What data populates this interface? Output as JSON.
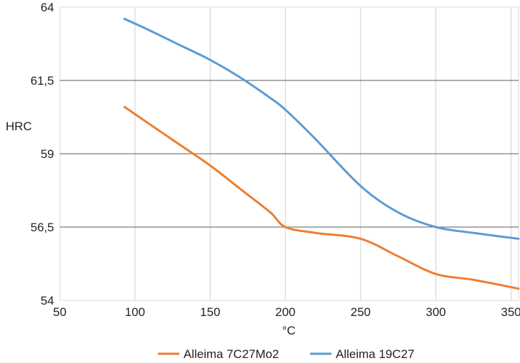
{
  "chart_data": {
    "type": "line",
    "title": "",
    "xlabel": "°C",
    "ylabel": "HRC",
    "xlim": [
      50,
      355
    ],
    "ylim": [
      54,
      64
    ],
    "x_ticks": [
      50,
      100,
      150,
      200,
      250,
      300,
      350
    ],
    "x_tick_labels": [
      "50",
      "100",
      "150",
      "200",
      "250",
      "300",
      "350"
    ],
    "y_ticks": [
      54,
      56.5,
      59,
      61.5,
      64
    ],
    "y_tick_labels": [
      "54",
      "56,5",
      "59",
      "61,5",
      "64"
    ],
    "grid": "both",
    "legend_position": "bottom-center",
    "series": [
      {
        "name": "Alleima 7C27Mo2",
        "color": "#ED7D31",
        "x": [
          93,
          110,
          130,
          150,
          170,
          190,
          200,
          220,
          250,
          275,
          300,
          325,
          355
        ],
        "y": [
          60.6,
          60.0,
          59.3,
          58.6,
          57.8,
          57.0,
          56.5,
          56.3,
          56.1,
          55.5,
          54.9,
          54.7,
          54.4
        ]
      },
      {
        "name": "Alleima 19C27",
        "color": "#5B9BD5",
        "x": [
          93,
          110,
          130,
          150,
          170,
          190,
          200,
          220,
          250,
          275,
          300,
          325,
          355
        ],
        "y": [
          63.6,
          63.2,
          62.7,
          62.2,
          61.6,
          60.9,
          60.5,
          59.5,
          57.9,
          57.0,
          56.5,
          56.3,
          56.1
        ]
      }
    ]
  }
}
